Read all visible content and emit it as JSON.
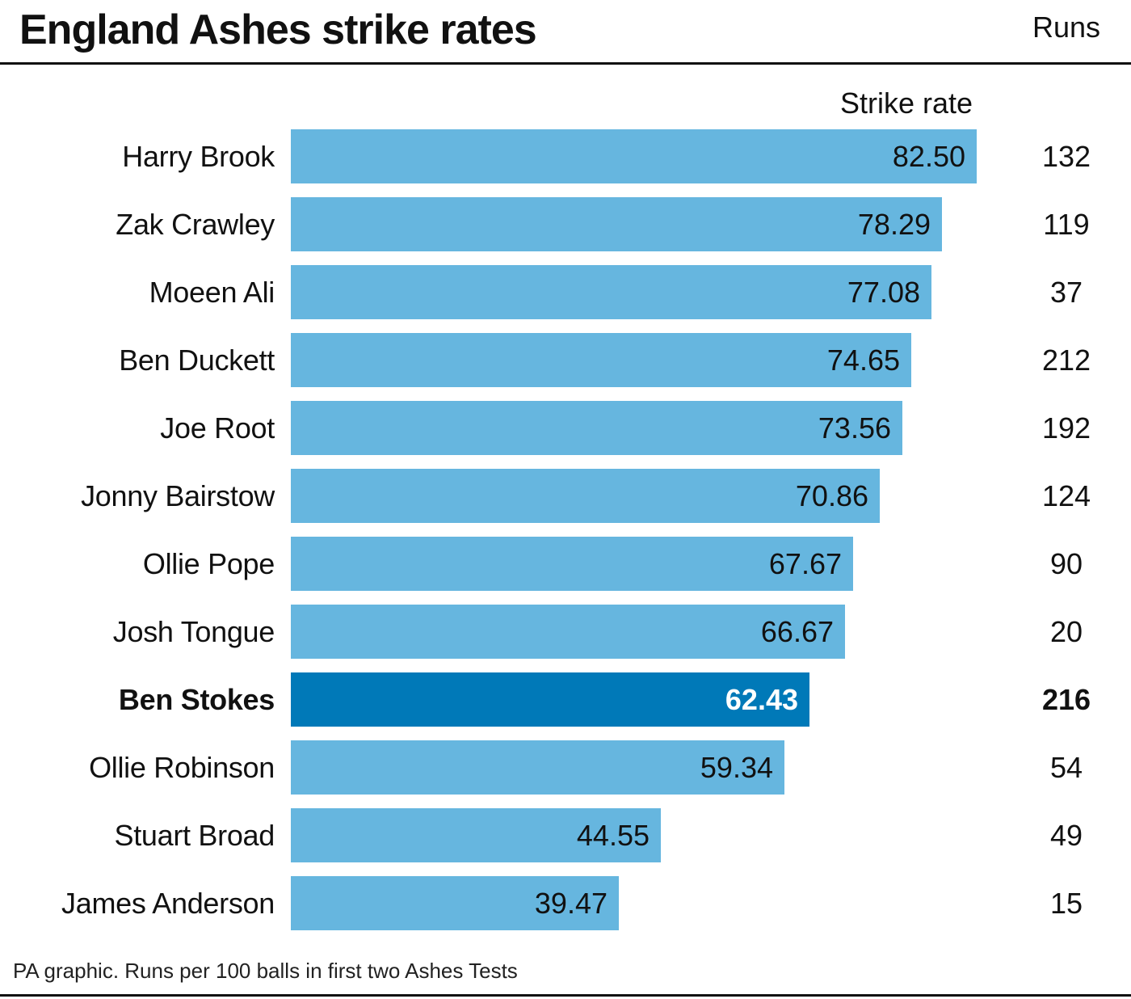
{
  "title": "England Ashes strike rates",
  "footer": "PA graphic. Runs per 100 balls in first two Ashes Tests",
  "colors": {
    "bar": "#66b6df",
    "highlight_bar": "#0079b8",
    "highlight_label": "#ffffff",
    "text": "#111111"
  },
  "chart_data": {
    "type": "bar",
    "orientation": "horizontal",
    "title": "England Ashes strike rates",
    "value_header": "Strike rate",
    "extra_header": "Runs",
    "xlim": [
      0,
      82.5
    ],
    "grid": false,
    "categories": [
      "Harry Brook",
      "Zak Crawley",
      "Moeen Ali",
      "Ben Duckett",
      "Joe Root",
      "Jonny Bairstow",
      "Ollie Pope",
      "Josh Tongue",
      "Ben Stokes",
      "Ollie Robinson",
      "Stuart Broad",
      "James Anderson"
    ],
    "value_labels": [
      "82.50",
      "78.29",
      "77.08",
      "74.65",
      "73.56",
      "70.86",
      "67.67",
      "66.67",
      "62.43",
      "59.34",
      "44.55",
      "39.47"
    ],
    "values": [
      82.5,
      78.29,
      77.08,
      74.65,
      73.56,
      70.86,
      67.67,
      66.67,
      62.43,
      59.34,
      44.55,
      39.47
    ],
    "runs": [
      "132",
      "119",
      "37",
      "212",
      "192",
      "124",
      "90",
      "20",
      "216",
      "54",
      "49",
      "15"
    ],
    "highlight": "Ben Stokes"
  }
}
